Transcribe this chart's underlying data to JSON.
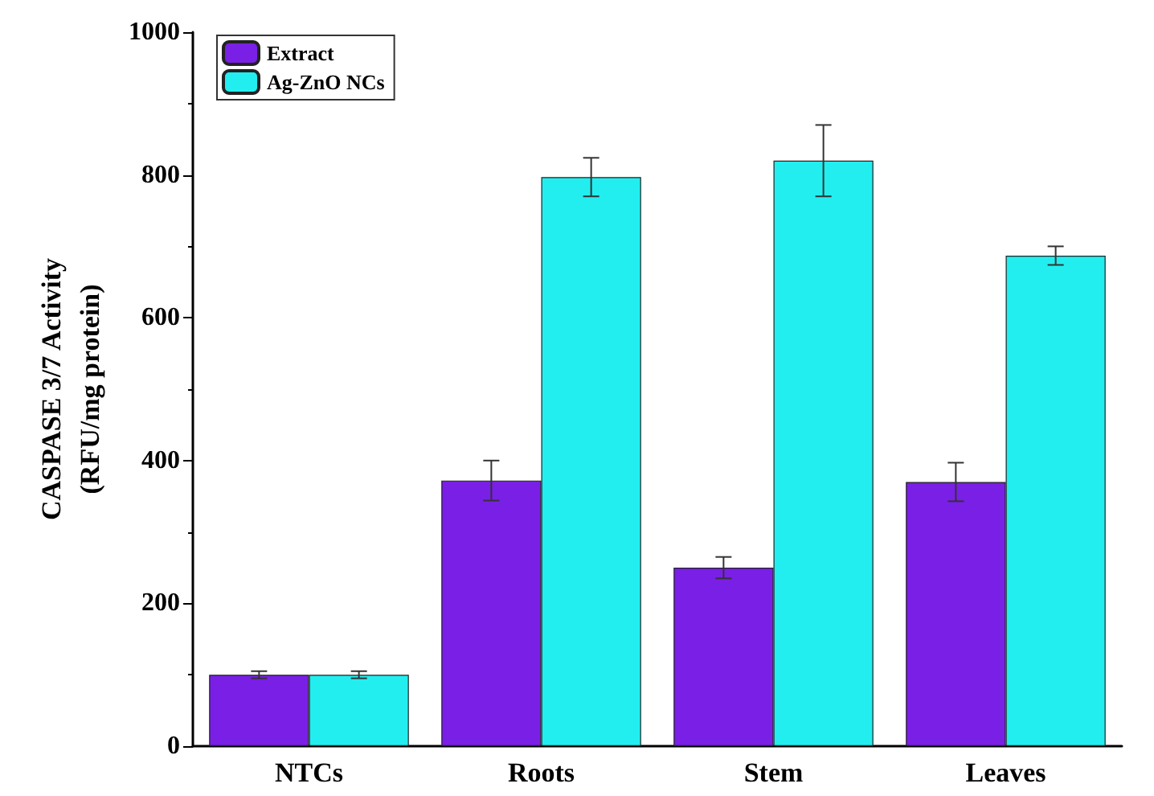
{
  "chart_data": {
    "type": "bar",
    "ylabel": "CASPASE 3/7 Activity\n(RFU/mg protein)",
    "categories": [
      "NTCs",
      "Roots",
      "Stem",
      "Leaves"
    ],
    "series": [
      {
        "name": "Extract",
        "color": "#7a1fe6",
        "values": [
          100,
          372,
          250,
          370
        ],
        "errors": [
          5,
          28,
          15,
          27
        ]
      },
      {
        "name": "Ag-ZnO NCs",
        "color": "#22eef0",
        "values": [
          100,
          797,
          820,
          687
        ],
        "errors": [
          5,
          27,
          50,
          13
        ]
      }
    ],
    "ylim": [
      0,
      1000
    ],
    "yticks": [
      0,
      200,
      400,
      600,
      800,
      1000
    ],
    "grid": false,
    "legend": "top left"
  }
}
